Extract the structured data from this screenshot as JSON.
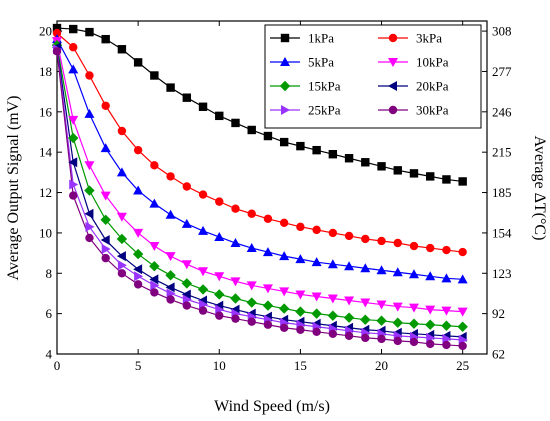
{
  "chart_data": {
    "type": "line",
    "xlabel": "Wind Speed (m/s)",
    "ylabel": "Average Output Signal (mV)",
    "y2label": "Average ΔT(°C)",
    "xlim": [
      0,
      26.5
    ],
    "ylim": [
      4,
      20.5
    ],
    "xticks": [
      "0",
      "5",
      "10",
      "15",
      "20",
      "25"
    ],
    "yticks": [
      "4",
      "6",
      "8",
      "10",
      "12",
      "14",
      "16",
      "18",
      "20"
    ],
    "y2ticks": [
      "62",
      "92",
      "123",
      "154",
      "185",
      "215",
      "246",
      "277",
      "308"
    ],
    "x": [
      0,
      1,
      2,
      3,
      4,
      5,
      6,
      7,
      8,
      9,
      10,
      11,
      12,
      13,
      14,
      15,
      16,
      17,
      18,
      19,
      20,
      21,
      22,
      23,
      24,
      25
    ],
    "legend_position": "top-right",
    "grid": false,
    "series": [
      {
        "name": "1kPa",
        "color": "#000000",
        "marker": "square",
        "values": [
          20.15,
          20.1,
          19.95,
          19.6,
          19.1,
          18.45,
          17.8,
          17.2,
          16.7,
          16.25,
          15.8,
          15.45,
          15.1,
          14.8,
          14.5,
          14.3,
          14.1,
          13.9,
          13.7,
          13.5,
          13.3,
          13.1,
          12.95,
          12.8,
          12.65,
          12.55
        ]
      },
      {
        "name": "3kPa",
        "color": "#ff0000",
        "marker": "circle",
        "values": [
          19.9,
          19.2,
          17.8,
          16.3,
          15.05,
          14.1,
          13.35,
          12.8,
          12.3,
          11.9,
          11.55,
          11.2,
          10.95,
          10.7,
          10.5,
          10.3,
          10.15,
          10.0,
          9.85,
          9.7,
          9.6,
          9.5,
          9.35,
          9.25,
          9.15,
          9.05
        ]
      },
      {
        "name": "5kPa",
        "color": "#0000ff",
        "marker": "triangle-up",
        "values": [
          19.6,
          18.1,
          15.9,
          14.2,
          13.0,
          12.1,
          11.45,
          10.9,
          10.45,
          10.1,
          9.8,
          9.5,
          9.25,
          9.05,
          8.85,
          8.7,
          8.55,
          8.45,
          8.35,
          8.25,
          8.15,
          8.05,
          7.95,
          7.85,
          7.75,
          7.7
        ]
      },
      {
        "name": "10kPa",
        "color": "#ff00ff",
        "marker": "triangle-down",
        "values": [
          19.5,
          15.6,
          13.35,
          11.85,
          10.8,
          10.0,
          9.35,
          8.85,
          8.45,
          8.1,
          7.85,
          7.6,
          7.4,
          7.25,
          7.1,
          6.95,
          6.85,
          6.75,
          6.65,
          6.55,
          6.45,
          6.35,
          6.3,
          6.2,
          6.15,
          6.1
        ]
      },
      {
        "name": "15kPa",
        "color": "#009900",
        "marker": "diamond",
        "values": [
          19.3,
          14.7,
          12.1,
          10.65,
          9.7,
          8.95,
          8.35,
          7.9,
          7.5,
          7.2,
          6.95,
          6.75,
          6.55,
          6.4,
          6.25,
          6.1,
          6.0,
          5.9,
          5.8,
          5.7,
          5.65,
          5.55,
          5.5,
          5.45,
          5.4,
          5.35
        ]
      },
      {
        "name": "20kPa",
        "color": "#000080",
        "marker": "triangle-left",
        "values": [
          19.2,
          13.5,
          10.95,
          9.65,
          8.85,
          8.2,
          7.7,
          7.3,
          6.95,
          6.65,
          6.4,
          6.2,
          6.0,
          5.85,
          5.7,
          5.6,
          5.5,
          5.4,
          5.3,
          5.2,
          5.15,
          5.05,
          5.0,
          4.95,
          4.9,
          4.85
        ]
      },
      {
        "name": "25kPa",
        "color": "#9933ff",
        "marker": "triangle-right",
        "values": [
          19.1,
          12.4,
          10.3,
          9.2,
          8.4,
          7.85,
          7.4,
          7.0,
          6.7,
          6.45,
          6.2,
          6.0,
          5.85,
          5.7,
          5.55,
          5.45,
          5.35,
          5.25,
          5.15,
          5.05,
          5.0,
          4.9,
          4.85,
          4.8,
          4.75,
          4.7
        ]
      },
      {
        "name": "30kPa",
        "color": "#800080",
        "marker": "circle",
        "values": [
          19.0,
          11.85,
          9.75,
          8.75,
          8.0,
          7.45,
          7.05,
          6.7,
          6.4,
          6.15,
          5.9,
          5.75,
          5.6,
          5.45,
          5.3,
          5.2,
          5.1,
          5.0,
          4.9,
          4.8,
          4.75,
          4.65,
          4.6,
          4.5,
          4.45,
          4.4
        ]
      }
    ]
  }
}
